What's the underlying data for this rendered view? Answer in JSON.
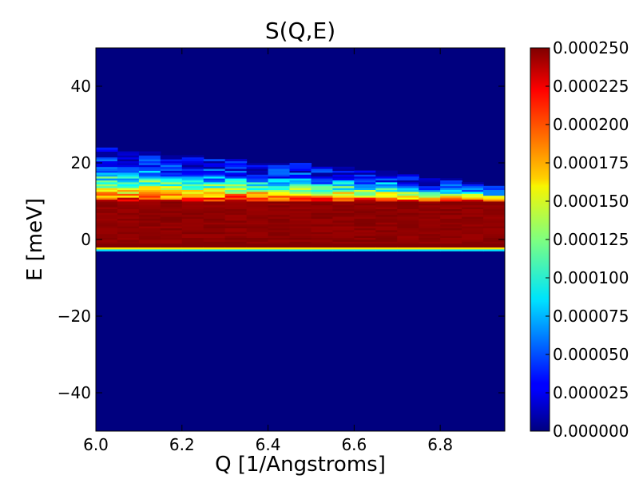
{
  "chart_data": {
    "type": "heatmap",
    "title": "S(Q,E)",
    "xlabel": "Q [1/Angstroms]",
    "ylabel": "E [meV]",
    "xlim": [
      6.0,
      6.95
    ],
    "ylim": [
      -50,
      50
    ],
    "xticks": [
      6.0,
      6.2,
      6.4,
      6.6,
      6.8
    ],
    "xtick_labels": [
      "6.0",
      "6.2",
      "6.4",
      "6.6",
      "6.8"
    ],
    "yticks": [
      -40,
      -20,
      0,
      20,
      40
    ],
    "ytick_labels": [
      "−40",
      "−20",
      "0",
      "20",
      "40"
    ],
    "colormap": "jet",
    "colorbar": {
      "vmin": 0.0,
      "vmax": 0.00025,
      "ticks": [
        0.0,
        2.5e-05,
        5e-05,
        7.5e-05,
        0.0001,
        0.000125,
        0.00015,
        0.000175,
        0.0002,
        0.000225,
        0.00025
      ],
      "tick_labels": [
        "0.000000",
        "0.000025",
        "0.000050",
        "0.000075",
        "0.000100",
        "0.000125",
        "0.000150",
        "0.000175",
        "0.000200",
        "0.000225",
        "0.000250"
      ]
    },
    "q_columns": [
      6.0,
      6.05,
      6.1,
      6.15,
      6.2,
      6.25,
      6.3,
      6.35,
      6.4,
      6.45,
      6.5,
      6.55,
      6.6,
      6.65,
      6.7,
      6.75,
      6.8,
      6.85,
      6.9
    ],
    "q_step": 0.05,
    "elastic_line_e": -2,
    "saturated_band_e": [
      -1,
      10
    ],
    "upper_edge_e": [
      24,
      23,
      23,
      22,
      22,
      21,
      21,
      20,
      20,
      20,
      19,
      19,
      18,
      18,
      17,
      16,
      16,
      15,
      14
    ],
    "e_step": 0.5
  }
}
